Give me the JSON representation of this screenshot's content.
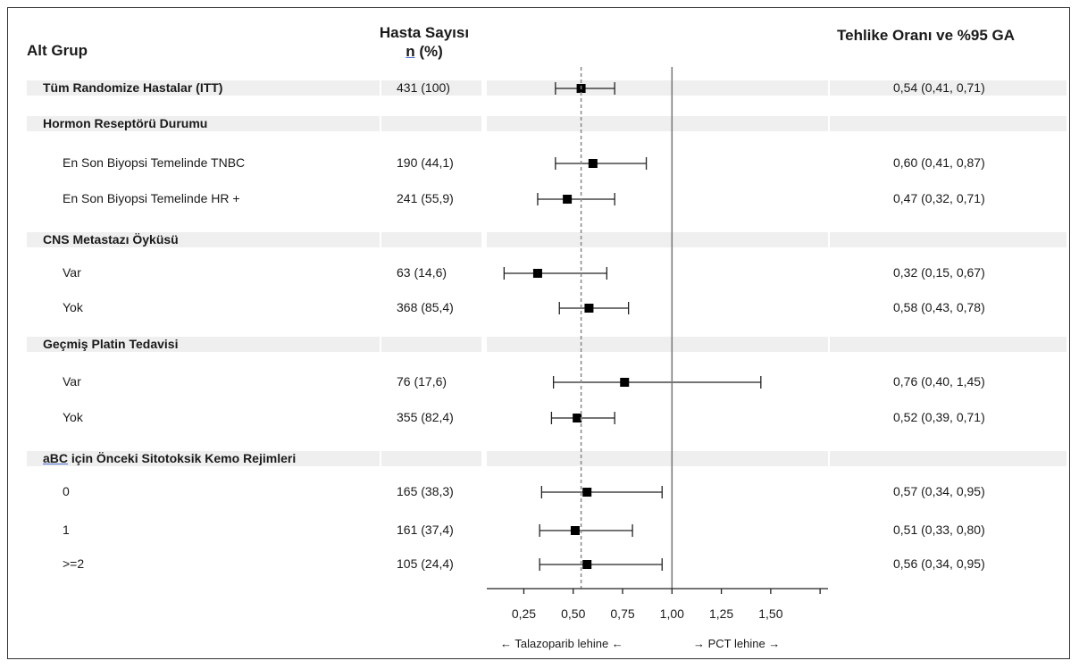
{
  "headers": {
    "subgroup": "Alt Grup",
    "count_line1": "Hasta Sayısı",
    "count_line2_u": "n",
    "count_line2_rest": " (%)",
    "hr": "Tehlike Oranı ve %95 GA"
  },
  "footer": {
    "favors_left": "← Talazoparib lehine ←",
    "favors_right": "→ PCT lehine →"
  },
  "chart_data": {
    "type": "forest",
    "x_axis": {
      "min": 0.0625,
      "max": 1.79,
      "ticks": [
        0.25,
        0.5,
        0.75,
        1.0,
        1.25,
        1.5
      ],
      "tick_labels": [
        "0,25",
        "0,50",
        "0,75",
        "1,00",
        "1,25",
        "1,50"
      ],
      "reference_line": 1.0,
      "overall_line": 0.54
    },
    "rows": [
      {
        "kind": "header",
        "label": "Tüm Randomize Hastalar (ITT)",
        "n": "431 (100)",
        "hr": 0.54,
        "lo": 0.41,
        "hi": 0.71,
        "ci_text": "0,54 (0,41, 0,71)"
      },
      {
        "kind": "header",
        "label": "Hormon Reseptörü Durumu"
      },
      {
        "kind": "item",
        "label": "En Son Biyopsi Temelinde TNBC",
        "n": "190 (44,1)",
        "hr": 0.6,
        "lo": 0.41,
        "hi": 0.87,
        "ci_text": "0,60 (0,41, 0,87)"
      },
      {
        "kind": "item",
        "label": "En Son Biyopsi Temelinde HR +",
        "n": "241 (55,9)",
        "hr": 0.47,
        "lo": 0.32,
        "hi": 0.71,
        "ci_text": "0,47 (0,32, 0,71)"
      },
      {
        "kind": "header",
        "label": "CNS Metastazı Öyküsü"
      },
      {
        "kind": "item",
        "label": "Var",
        "n": "63 (14,6)",
        "hr": 0.32,
        "lo": 0.15,
        "hi": 0.67,
        "ci_text": "0,32 (0,15, 0,67)"
      },
      {
        "kind": "item",
        "label": "Yok",
        "n": "368 (85,4)",
        "hr": 0.58,
        "lo": 0.43,
        "hi": 0.78,
        "ci_text": "0,58 (0,43, 0,78)"
      },
      {
        "kind": "header",
        "label": "Geçmiş Platin Tedavisi"
      },
      {
        "kind": "item",
        "label": "Var",
        "n": "76 (17,6)",
        "hr": 0.76,
        "lo": 0.4,
        "hi": 1.45,
        "ci_text": "0,76 (0,40, 1,45)"
      },
      {
        "kind": "item",
        "label": "Yok",
        "n": "355 (82,4)",
        "hr": 0.52,
        "lo": 0.39,
        "hi": 0.71,
        "ci_text": "0,52 (0,39, 0,71)"
      },
      {
        "kind": "header",
        "label_u": "aBC",
        "label": " için Önceki Sitotoksik Kemo Rejimleri"
      },
      {
        "kind": "item",
        "label": "0",
        "n": "165 (38,3)",
        "hr": 0.57,
        "lo": 0.34,
        "hi": 0.95,
        "ci_text": "0,57 (0,34, 0,95)"
      },
      {
        "kind": "item",
        "label": "1",
        "n": "161 (37,4)",
        "hr": 0.51,
        "lo": 0.33,
        "hi": 0.8,
        "ci_text": "0,51 (0,33, 0,80)"
      },
      {
        "kind": "item",
        "label": ">=2",
        "n": "105 (24,4)",
        "hr": 0.57,
        "lo": 0.33,
        "hi": 0.95,
        "ci_text": "0,56 (0,34, 0,95)"
      }
    ]
  }
}
